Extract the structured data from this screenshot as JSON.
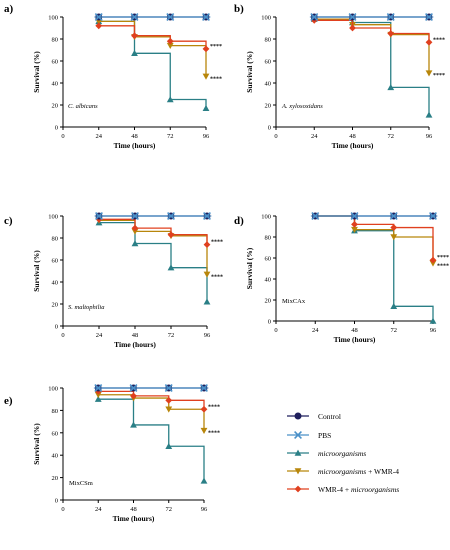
{
  "figure": {
    "legend": {
      "entries": [
        {
          "label": "Control",
          "italic_parts": []
        },
        {
          "label": "PBS",
          "italic_parts": []
        },
        {
          "label": "microorganisms",
          "italic_parts": [
            "microorganisms"
          ]
        },
        {
          "label": "microorganisms + WMR-4",
          "italic_parts": [
            "microorganisms"
          ]
        },
        {
          "label": "WMR-4 + microorganisms",
          "italic_parts": [
            "microorganisms"
          ]
        }
      ]
    },
    "colors": {
      "Control": "#1f1f5c",
      "PBS": "#4a90c8",
      "microorganisms": "#2a7f86",
      "microorganisms + WMR-4": "#b8860b",
      "WMR-4 + microorganisms": "#e0401f"
    }
  },
  "chart_data": [
    {
      "type": "line",
      "panel_label": "a)",
      "annotation": "C. albicans",
      "xlabel": "Time (hours)",
      "ylabel": "Survival (%)",
      "xlim": [
        0,
        96
      ],
      "ylim": [
        0,
        100
      ],
      "xticks": [
        "0",
        "24",
        "48",
        "72",
        "96"
      ],
      "yticks": [
        "0",
        "20",
        "40",
        "60",
        "80",
        "100"
      ],
      "significance": [
        "****",
        "****"
      ],
      "x": [
        24,
        48,
        72,
        96
      ],
      "series": [
        {
          "name": "Control",
          "values": [
            100,
            100,
            100,
            100
          ]
        },
        {
          "name": "PBS",
          "values": [
            100,
            100,
            100,
            100
          ]
        },
        {
          "name": "microorganisms",
          "values": [
            96,
            67,
            25,
            17
          ]
        },
        {
          "name": "microorganisms + WMR-4",
          "values": [
            96,
            82,
            74,
            46
          ]
        },
        {
          "name": "WMR-4 + microorganisms",
          "values": [
            92,
            83,
            78,
            71
          ]
        }
      ]
    },
    {
      "type": "line",
      "panel_label": "b)",
      "annotation": "A. xylosoxidans",
      "xlabel": "Time (hours)",
      "ylabel": "Survival (%)",
      "xlim": [
        0,
        96
      ],
      "ylim": [
        0,
        100
      ],
      "xticks": [
        "0",
        "24",
        "48",
        "72",
        "96"
      ],
      "yticks": [
        "0",
        "20",
        "40",
        "60",
        "80",
        "100"
      ],
      "significance": [
        "****",
        "****"
      ],
      "x": [
        24,
        48,
        72,
        96
      ],
      "series": [
        {
          "name": "Control",
          "values": [
            100,
            100,
            100,
            100
          ]
        },
        {
          "name": "PBS",
          "values": [
            100,
            100,
            100,
            100
          ]
        },
        {
          "name": "microorganisms",
          "values": [
            98,
            95,
            36,
            11
          ]
        },
        {
          "name": "microorganisms + WMR-4",
          "values": [
            98,
            93,
            84,
            49
          ]
        },
        {
          "name": "WMR-4 + microorganisms",
          "values": [
            97,
            90,
            85,
            77
          ]
        }
      ]
    },
    {
      "type": "line",
      "panel_label": "c)",
      "annotation": "S. maltophilia",
      "xlabel": "Time (hours)",
      "ylabel": "Survival (%)",
      "xlim": [
        0,
        96
      ],
      "ylim": [
        0,
        100
      ],
      "xticks": [
        "0",
        "24",
        "48",
        "72",
        "96"
      ],
      "yticks": [
        "0",
        "20",
        "40",
        "60",
        "80",
        "100"
      ],
      "significance": [
        "****",
        "****"
      ],
      "x": [
        24,
        48,
        72,
        96
      ],
      "series": [
        {
          "name": "Control",
          "values": [
            100,
            100,
            100,
            100
          ]
        },
        {
          "name": "PBS",
          "values": [
            100,
            100,
            100,
            100
          ]
        },
        {
          "name": "microorganisms",
          "values": [
            94,
            75,
            53,
            22
          ]
        },
        {
          "name": "microorganisms + WMR-4",
          "values": [
            96,
            86,
            82,
            47
          ]
        },
        {
          "name": "WMR-4 + microorganisms",
          "values": [
            97,
            89,
            83,
            74
          ]
        }
      ]
    },
    {
      "type": "line",
      "panel_label": "d)",
      "annotation": "MixCAx",
      "xlabel": "Time (hours)",
      "ylabel": "Survival (%)",
      "xlim": [
        0,
        96
      ],
      "ylim": [
        0,
        100
      ],
      "xticks": [
        "0",
        "24",
        "48",
        "72",
        "96"
      ],
      "yticks": [
        "0",
        "20",
        "40",
        "60",
        "80",
        "100"
      ],
      "significance": [
        "****",
        "****"
      ],
      "x": [
        24,
        48,
        72,
        96
      ],
      "series": [
        {
          "name": "Control",
          "values": [
            100,
            100,
            100,
            100
          ]
        },
        {
          "name": "PBS",
          "values": [
            100,
            100,
            100,
            100
          ]
        },
        {
          "name": "microorganisms",
          "values": [
            100,
            86,
            14,
            0
          ]
        },
        {
          "name": "microorganisms + WMR-4",
          "values": [
            100,
            87,
            80,
            55
          ]
        },
        {
          "name": "WMR-4 + microorganisms",
          "values": [
            100,
            92,
            89,
            58
          ]
        }
      ]
    },
    {
      "type": "line",
      "panel_label": "e)",
      "annotation": "MixCSm",
      "xlabel": "Time (hours)",
      "ylabel": "Survival (%)",
      "xlim": [
        0,
        96
      ],
      "ylim": [
        0,
        100
      ],
      "xticks": [
        "0",
        "24",
        "48",
        "72",
        "96"
      ],
      "yticks": [
        "0",
        "20",
        "40",
        "60",
        "80",
        "100"
      ],
      "significance": [
        "****",
        "****"
      ],
      "x": [
        24,
        48,
        72,
        96
      ],
      "series": [
        {
          "name": "Control",
          "values": [
            100,
            100,
            100,
            100
          ]
        },
        {
          "name": "PBS",
          "values": [
            100,
            100,
            100,
            100
          ]
        },
        {
          "name": "microorganisms",
          "values": [
            90,
            67,
            48,
            17
          ]
        },
        {
          "name": "microorganisms + WMR-4",
          "values": [
            94,
            91,
            81,
            62
          ]
        },
        {
          "name": "WMR-4 + microorganisms",
          "values": [
            97,
            93,
            89,
            81
          ]
        }
      ]
    }
  ]
}
